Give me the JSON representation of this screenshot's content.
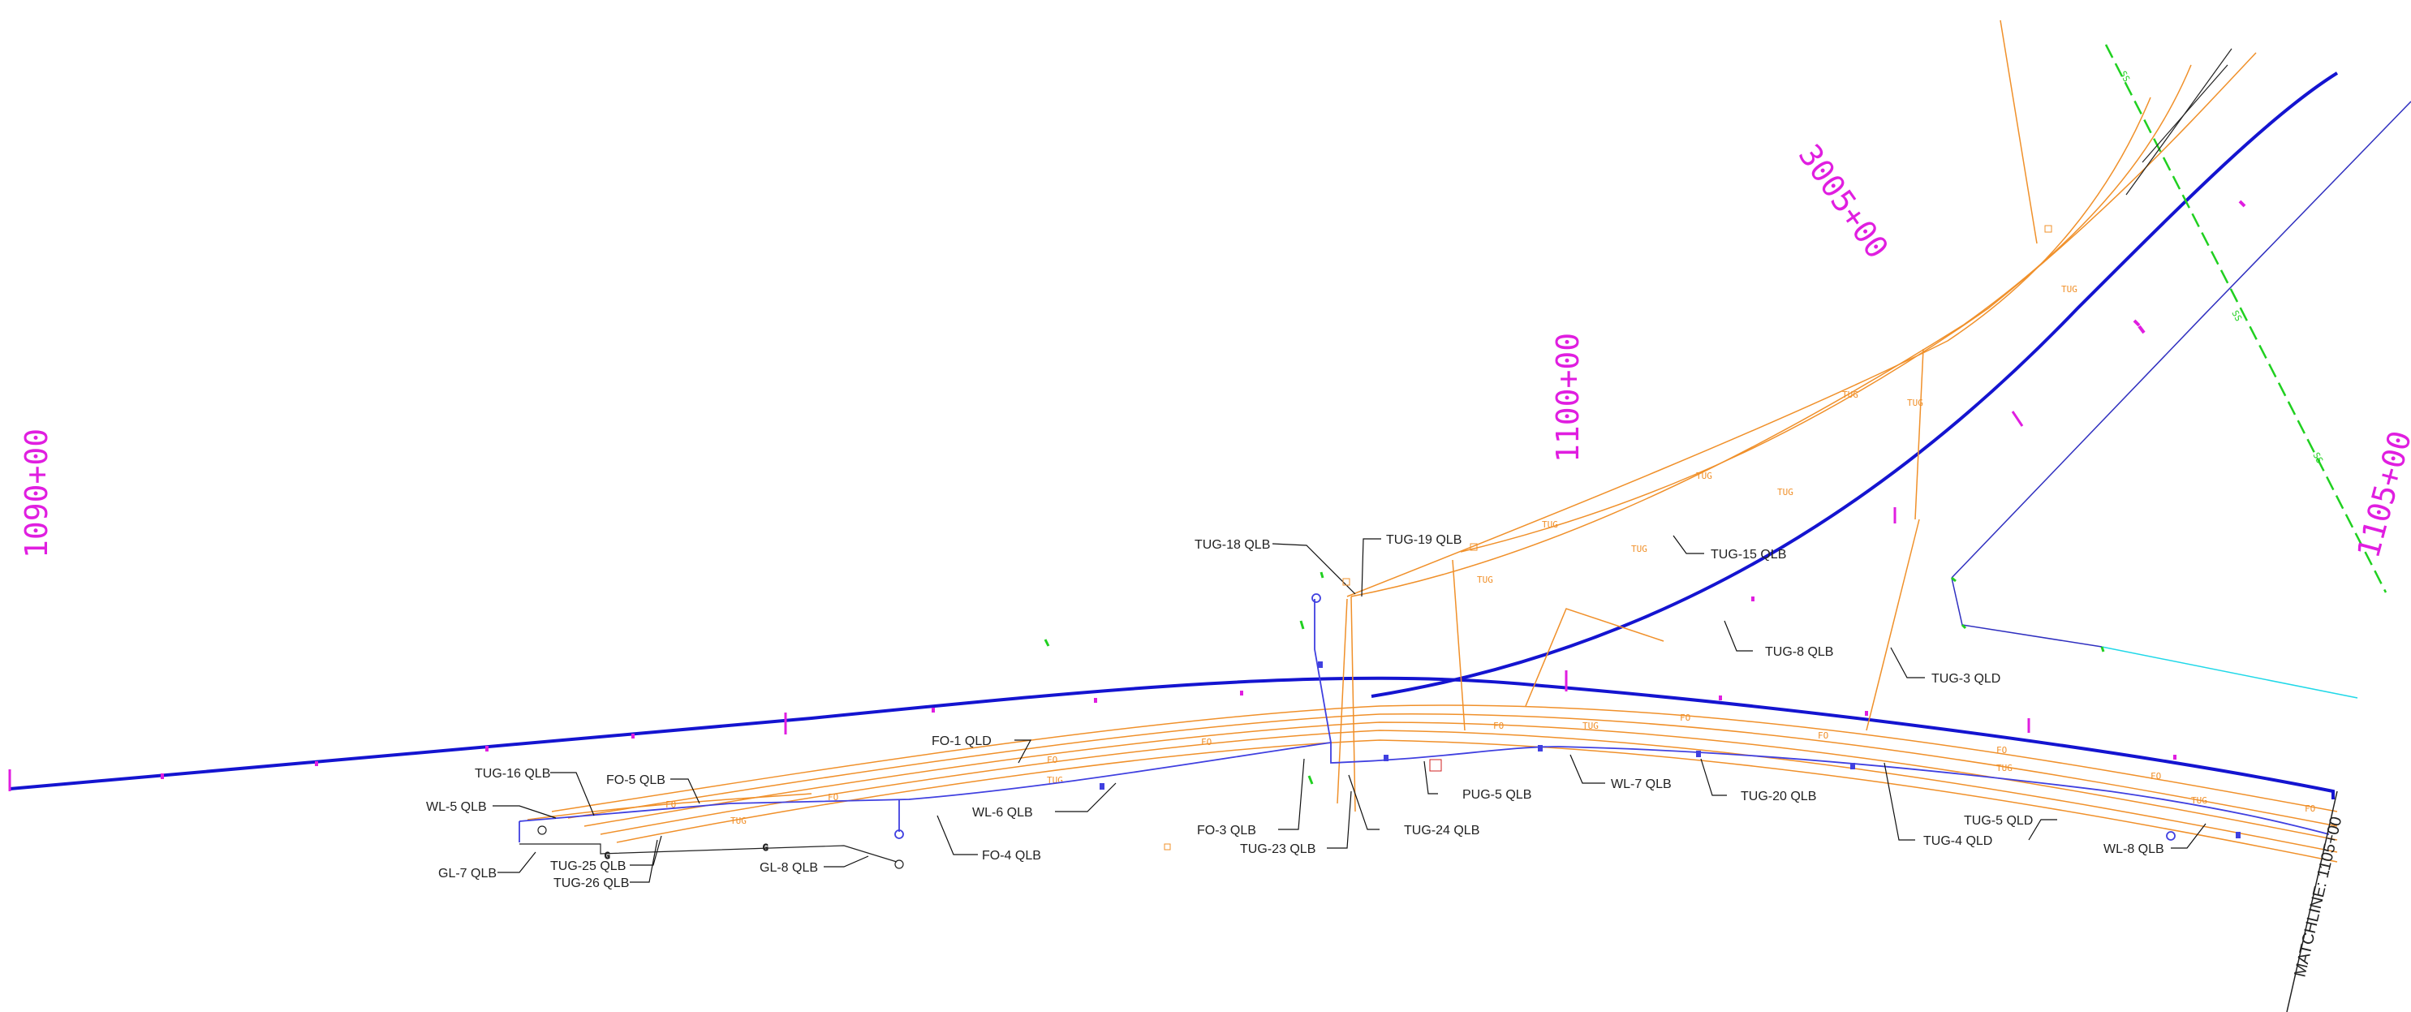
{
  "colors": {
    "background": "#ffffff",
    "centerline": "#1414d0",
    "station_text": "#e01ee0",
    "station_tick": "#e01ee0",
    "utility_orange": "#f0902a",
    "water_blue": "#4040e0",
    "gas_green": "#20d020",
    "cyan_line": "#20d8e8",
    "label_text": "#222222",
    "leader": "#111111"
  },
  "stations": {
    "s1090": "1090+00",
    "s1100": "1100+00",
    "s3005": "3005+00",
    "s1105": "1105+00"
  },
  "matchline": "MATCHLINE: 1105+00",
  "line_tags": {
    "fo": "FO",
    "tug": "TUG",
    "gas": "G",
    "ss": "SS"
  },
  "callouts": {
    "tug18": "TUG-18 QLB",
    "tug19": "TUG-19 QLB",
    "tug15": "TUG-15 QLB",
    "tug8": "TUG-8 QLB",
    "tug3": "TUG-3 QLD",
    "tug16": "TUG-16 QLB",
    "wl5": "WL-5 QLB",
    "fo5": "FO-5 QLB",
    "gl7": "GL-7 QLB",
    "tug25": "TUG-25 QLB",
    "tug26": "TUG-26 QLB",
    "gl8": "GL-8 QLB",
    "fo1": "FO-1 QLD",
    "wl6": "WL-6 QLB",
    "fo4": "FO-4 QLB",
    "fo3": "FO-3 QLB",
    "tug23": "TUG-23 QLB",
    "tug24": "TUG-24 QLB",
    "pug5": "PUG-5 QLB",
    "wl7": "WL-7 QLB",
    "tug20": "TUG-20 QLB",
    "tug4": "TUG-4 QLD",
    "tug5": "TUG-5 QLD",
    "wl8": "WL-8 QLB"
  }
}
